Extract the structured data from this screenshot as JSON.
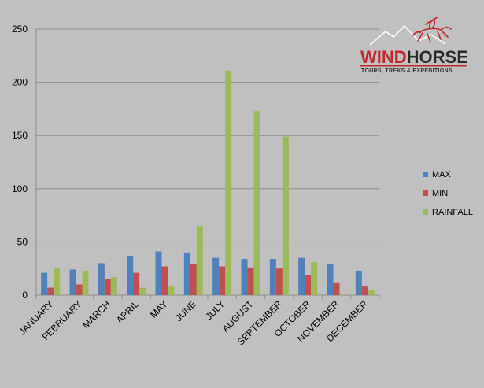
{
  "chart_data": {
    "type": "bar",
    "categories": [
      "JANUARY",
      "FEBRUARY",
      "MARCH",
      "APRIL",
      "MAY",
      "JUNE",
      "JULY",
      "AUGUST",
      "SEPTEMBER",
      "OCTOBER",
      "NOVEMBER",
      "DECEMBER"
    ],
    "series": [
      {
        "name": "MAX",
        "color": "#4f81bd",
        "values": [
          21,
          24,
          30,
          37,
          41,
          40,
          35,
          34,
          34,
          35,
          29,
          23
        ]
      },
      {
        "name": "MIN",
        "color": "#c0504d",
        "values": [
          7,
          10,
          15,
          21,
          27,
          29,
          27,
          26,
          25,
          19,
          12,
          8
        ]
      },
      {
        "name": "RAINFALL",
        "color": "#9bbb59",
        "values": [
          25,
          23,
          17,
          7,
          8,
          65,
          211,
          173,
          149,
          31,
          1,
          5
        ]
      }
    ],
    "ylim": [
      0,
      250
    ],
    "yticks": [
      0,
      50,
      100,
      150,
      200,
      250
    ],
    "grid": true,
    "legend_position": "right"
  },
  "logo": {
    "text_red": "WIND",
    "text_dark": "HORSE",
    "tagline": "TOURS, TREKS & EXPEDITIONS"
  }
}
